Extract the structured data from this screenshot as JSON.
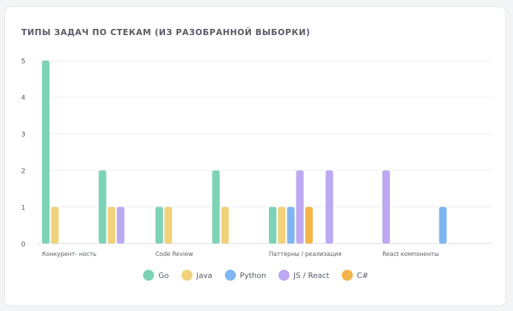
{
  "chart_data": {
    "type": "bar",
    "title": "ТИПЫ ЗАДАЧ ПО СТЕКАМ (ИЗ РАЗОБРАННОЙ ВЫБОРКИ)",
    "xlabel": "",
    "ylabel": "",
    "ylim": [
      0,
      5
    ],
    "yticks": [
      0,
      1,
      2,
      3,
      4,
      5
    ],
    "grid": true,
    "legend_position": "bottom",
    "categories": [
      "Конкурент- ность",
      "",
      "Code Review",
      "",
      "Паттерны / реализация",
      "",
      "React компоненты",
      ""
    ],
    "series": [
      {
        "name": "Go",
        "color": "#7dd3b5",
        "values": [
          5,
          2,
          1,
          2,
          1,
          0,
          0,
          0
        ]
      },
      {
        "name": "Java",
        "color": "#f1d17a",
        "values": [
          1,
          1,
          1,
          1,
          1,
          0,
          0,
          0
        ]
      },
      {
        "name": "Python",
        "color": "#7fb6f2",
        "values": [
          0,
          0,
          0,
          0,
          1,
          0,
          0,
          1
        ]
      },
      {
        "name": "JS / React",
        "color": "#bda8f2",
        "values": [
          0,
          1,
          0,
          0,
          2,
          2,
          2,
          0
        ]
      },
      {
        "name": "C#",
        "color": "#f3b44a",
        "values": [
          0,
          0,
          0,
          0,
          1,
          0,
          0,
          0
        ]
      }
    ]
  }
}
